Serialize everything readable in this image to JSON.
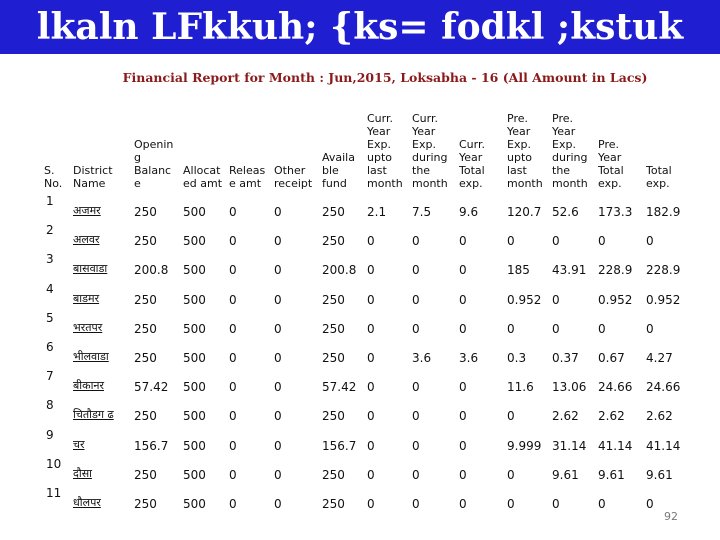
{
  "banner_title": "lkaln LFkkuh; {ks= fodkl ;kstuk",
  "subtitle": "Financial Report for Month : Jun,2015, Loksabha - 16 (All Amount in Lacs)",
  "headers": [
    "S.\nNo.",
    "District\nName",
    "Openin\ng\nBalanc\ne",
    "Allocat\ned amt",
    "Releas\ne amt",
    "Other\nreceipt",
    "Availa\nble\nfund",
    "Curr.\nYear\nExp.\nupto\nlast\nmonth",
    "Curr.\nYear\nExp.\nduring\nthe\nmonth",
    "Curr.\nYear\nTotal\nexp.",
    "Pre.\nYear\nExp.\nupto\nlast\nmonth",
    "Pre.\nYear\nExp.\nduring\nthe\nmonth",
    "Pre.\nYear\nTotal\nexp.",
    "Total\nexp."
  ],
  "rows": [
    {
      "sno": "1",
      "district": "अजमर",
      "cells": [
        "250",
        "500",
        "0",
        "0",
        "250",
        "2.1",
        "7.5",
        "9.6",
        "120.7",
        "52.6",
        "173.3",
        "182.9"
      ]
    },
    {
      "sno": "2",
      "district": "अलवर",
      "cells": [
        "250",
        "500",
        "0",
        "0",
        "250",
        "0",
        "0",
        "0",
        "0",
        "0",
        "0",
        "0"
      ]
    },
    {
      "sno": "3",
      "district": "बासवाडा",
      "cells": [
        "200.8",
        "500",
        "0",
        "0",
        "200.8",
        "0",
        "0",
        "0",
        "185",
        "43.91",
        "228.9",
        "228.9"
      ]
    },
    {
      "sno": "4",
      "district": "बाडमर",
      "cells": [
        "250",
        "500",
        "0",
        "0",
        "250",
        "0",
        "0",
        "0",
        "0.952",
        "0",
        "0.952",
        "0.952"
      ]
    },
    {
      "sno": "5",
      "district": "भरतपर",
      "cells": [
        "250",
        "500",
        "0",
        "0",
        "250",
        "0",
        "0",
        "0",
        "0",
        "0",
        "0",
        "0"
      ]
    },
    {
      "sno": "6",
      "district": "भीलवाडा",
      "cells": [
        "250",
        "500",
        "0",
        "0",
        "250",
        "0",
        "3.6",
        "3.6",
        "0.3",
        "0.37",
        "0.67",
        "4.27"
      ]
    },
    {
      "sno": "7",
      "district": "बीकानर",
      "cells": [
        "57.42",
        "500",
        "0",
        "0",
        "57.42",
        "0",
        "0",
        "0",
        "11.6",
        "13.06",
        "24.66",
        "24.66"
      ]
    },
    {
      "sno": "8",
      "district": "चितौडग ढ",
      "cells": [
        "250",
        "500",
        "0",
        "0",
        "250",
        "0",
        "0",
        "0",
        "0",
        "2.62",
        "2.62",
        "2.62"
      ]
    },
    {
      "sno": "9",
      "district": "चर",
      "cells": [
        "156.7",
        "500",
        "0",
        "0",
        "156.7",
        "0",
        "0",
        "0",
        "9.999",
        "31.14",
        "41.14",
        "41.14"
      ]
    },
    {
      "sno": "10",
      "district": "दौसा",
      "cells": [
        "250",
        "500",
        "0",
        "0",
        "250",
        "0",
        "0",
        "0",
        "0",
        "9.61",
        "9.61",
        "9.61"
      ]
    },
    {
      "sno": "11",
      "district": "धौलपर",
      "cells": [
        "250",
        "500",
        "0",
        "0",
        "250",
        "0",
        "0",
        "0",
        "0",
        "0",
        "0",
        "0"
      ]
    }
  ],
  "page_number": "92"
}
